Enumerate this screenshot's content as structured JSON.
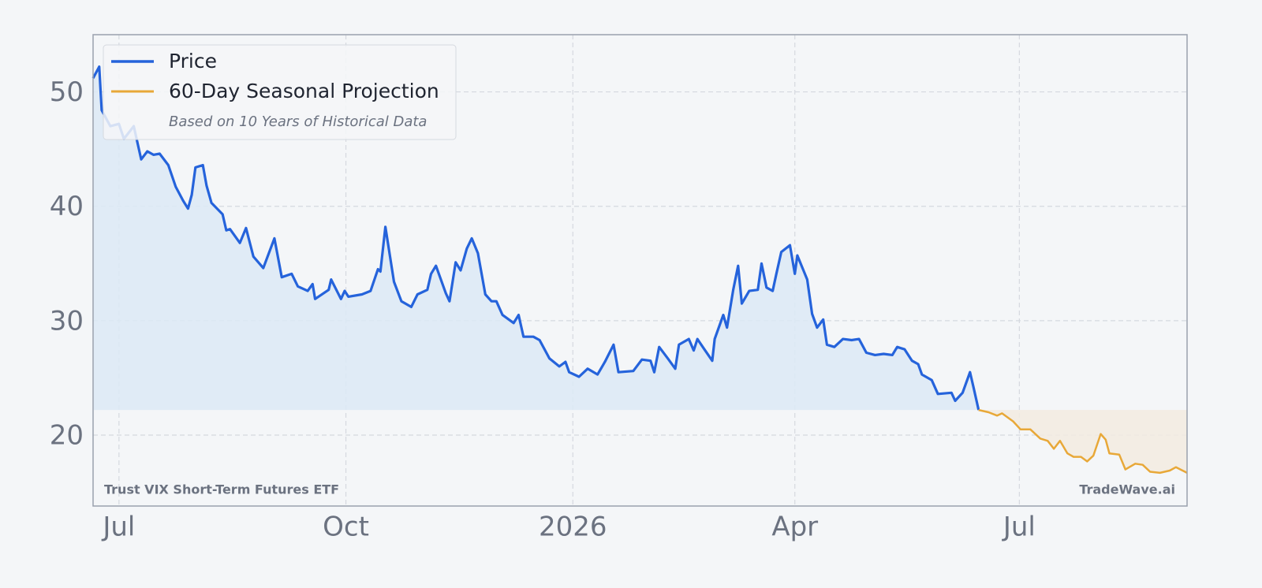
{
  "chart_data": {
    "type": "line",
    "xlim": [
      -10.5,
      433
    ],
    "ylim": [
      13.8,
      55
    ],
    "xticks": [
      {
        "value": 0,
        "label": "Jul"
      },
      {
        "value": 92,
        "label": "Oct"
      },
      {
        "value": 184,
        "label": "2026"
      },
      {
        "value": 274,
        "label": "Apr"
      },
      {
        "value": 365,
        "label": "Jul"
      }
    ],
    "yticks": [
      20,
      30,
      40,
      50
    ],
    "grid": true,
    "legend": "upper left",
    "legend_note": "Based on 10 Years of Historical Data",
    "annotations": [
      "Trust VIX Short-Term Futures ETF",
      "TradeWave.ai"
    ],
    "series": [
      {
        "name": "Price",
        "color": "#2563db",
        "fill": "#dce9f6",
        "x": [
          -10.5,
          -8,
          -7,
          -3.5,
          0,
          2,
          6,
          9,
          11.5,
          14,
          16.5,
          20,
          23,
          26,
          28,
          29.5,
          31,
          34,
          35.5,
          37.5,
          42,
          43.5,
          45,
          49,
          51.5,
          54.5,
          58.5,
          63,
          66,
          70,
          72.5,
          76.5,
          78.5,
          79.5,
          85,
          86,
          90,
          91.5,
          93,
          98.5,
          102,
          105,
          106,
          108,
          111.5,
          114.5,
          118.5,
          121,
          125,
          126.5,
          128.5,
          132.5,
          134,
          136.5,
          138.5,
          141,
          143,
          145.5,
          148.5,
          151,
          153,
          155.5,
          160,
          162,
          164,
          168,
          170.5,
          174.5,
          178.5,
          181,
          182.5,
          186.5,
          190,
          194,
          197,
          200.5,
          202.5,
          208.5,
          212,
          215.5,
          217,
          219,
          222.5,
          225.5,
          227,
          231,
          233,
          234.5,
          237,
          240.5,
          241.5,
          245,
          246.5,
          249,
          251,
          252.5,
          255.5,
          259,
          260.5,
          262.5,
          265,
          266.5,
          268.5,
          272,
          274,
          275,
          279,
          281,
          283,
          285.5,
          287,
          290,
          293.5,
          297,
          300,
          303,
          306.5,
          310,
          313.5,
          315.5,
          318.5,
          321.5,
          324,
          325.5,
          329.5,
          332,
          337.5,
          339,
          342,
          345,
          346.5,
          348.5
        ],
        "values": [
          51.2,
          52.2,
          48.4,
          47.0,
          47.2,
          45.9,
          47.0,
          44.1,
          44.8,
          44.5,
          44.6,
          43.6,
          41.7,
          40.5,
          39.8,
          41.0,
          43.4,
          43.6,
          41.8,
          40.3,
          39.3,
          37.9,
          38.0,
          36.8,
          38.1,
          35.6,
          34.6,
          37.2,
          33.8,
          34.1,
          33.0,
          32.6,
          33.2,
          31.9,
          32.7,
          33.6,
          31.9,
          32.6,
          32.1,
          32.3,
          32.6,
          34.5,
          34.3,
          38.2,
          33.4,
          31.7,
          31.2,
          32.3,
          32.7,
          34.1,
          34.8,
          32.4,
          31.7,
          35.1,
          34.4,
          36.3,
          37.2,
          35.9,
          32.3,
          31.7,
          31.7,
          30.5,
          29.8,
          30.5,
          28.6,
          28.6,
          28.3,
          26.7,
          26.0,
          26.4,
          25.5,
          25.1,
          25.8,
          25.3,
          26.4,
          27.9,
          25.5,
          25.6,
          26.6,
          26.5,
          25.5,
          27.7,
          26.7,
          25.8,
          27.9,
          28.4,
          27.4,
          28.4,
          27.6,
          26.5,
          28.4,
          30.5,
          29.4,
          32.7,
          34.8,
          31.5,
          32.6,
          32.7,
          35.0,
          32.9,
          32.6,
          34.1,
          36.0,
          36.6,
          34.1,
          35.7,
          33.6,
          30.6,
          29.4,
          30.1,
          27.9,
          27.7,
          28.4,
          28.3,
          28.4,
          27.2,
          27.0,
          27.1,
          27.0,
          27.7,
          27.5,
          26.5,
          26.2,
          25.3,
          24.8,
          23.6,
          23.7,
          23.0,
          23.7,
          25.5,
          24.1,
          22.2
        ]
      },
      {
        "name": "60-Day Seasonal Projection",
        "color": "#e8a838",
        "fill": "#f2ebe1",
        "x": [
          348.5,
          352.5,
          356,
          358,
          362.5,
          365.5,
          369.5,
          373.5,
          376.5,
          379,
          381.5,
          384.5,
          387,
          390,
          392.5,
          395,
          398,
          400,
          401.5,
          405.5,
          408,
          412,
          415,
          418,
          422,
          426,
          428.5,
          433
        ],
        "values": [
          22.2,
          22.0,
          21.7,
          21.9,
          21.2,
          20.5,
          20.5,
          19.7,
          19.5,
          18.8,
          19.5,
          18.4,
          18.1,
          18.1,
          17.7,
          18.2,
          20.1,
          19.6,
          18.4,
          18.3,
          17.0,
          17.5,
          17.4,
          16.8,
          16.7,
          16.9,
          17.2,
          16.7
        ]
      }
    ]
  }
}
